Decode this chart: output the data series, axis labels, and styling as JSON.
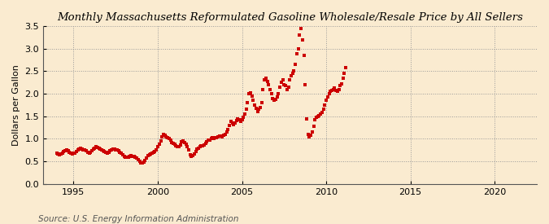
{
  "title": "Monthly Massachusetts Reformulated Gasoline Wholesale/Resale Price by All Sellers",
  "ylabel": "Dollars per Gallon",
  "source": "Source: U.S. Energy Information Administration",
  "background_color": "#faebd0",
  "marker_color": "#cc0000",
  "xlim": [
    1993.2,
    2022.5
  ],
  "ylim": [
    0.0,
    3.5
  ],
  "xticks": [
    1995,
    2000,
    2005,
    2010,
    2015,
    2020
  ],
  "yticks": [
    0.0,
    0.5,
    1.0,
    1.5,
    2.0,
    2.5,
    3.0,
    3.5
  ],
  "data": [
    [
      1994.0,
      0.68
    ],
    [
      1994.08,
      0.67
    ],
    [
      1994.17,
      0.65
    ],
    [
      1994.25,
      0.66
    ],
    [
      1994.33,
      0.69
    ],
    [
      1994.42,
      0.72
    ],
    [
      1994.5,
      0.74
    ],
    [
      1994.58,
      0.75
    ],
    [
      1994.67,
      0.73
    ],
    [
      1994.75,
      0.7
    ],
    [
      1994.83,
      0.68
    ],
    [
      1994.92,
      0.67
    ],
    [
      1995.0,
      0.68
    ],
    [
      1995.08,
      0.69
    ],
    [
      1995.17,
      0.72
    ],
    [
      1995.25,
      0.75
    ],
    [
      1995.33,
      0.78
    ],
    [
      1995.42,
      0.8
    ],
    [
      1995.5,
      0.78
    ],
    [
      1995.58,
      0.76
    ],
    [
      1995.67,
      0.75
    ],
    [
      1995.75,
      0.73
    ],
    [
      1995.83,
      0.7
    ],
    [
      1995.92,
      0.69
    ],
    [
      1996.0,
      0.71
    ],
    [
      1996.08,
      0.73
    ],
    [
      1996.17,
      0.77
    ],
    [
      1996.25,
      0.8
    ],
    [
      1996.33,
      0.82
    ],
    [
      1996.42,
      0.81
    ],
    [
      1996.5,
      0.79
    ],
    [
      1996.58,
      0.78
    ],
    [
      1996.67,
      0.76
    ],
    [
      1996.75,
      0.74
    ],
    [
      1996.83,
      0.72
    ],
    [
      1996.92,
      0.7
    ],
    [
      1997.0,
      0.69
    ],
    [
      1997.08,
      0.7
    ],
    [
      1997.17,
      0.73
    ],
    [
      1997.25,
      0.75
    ],
    [
      1997.33,
      0.77
    ],
    [
      1997.42,
      0.78
    ],
    [
      1997.5,
      0.76
    ],
    [
      1997.58,
      0.75
    ],
    [
      1997.67,
      0.73
    ],
    [
      1997.75,
      0.71
    ],
    [
      1997.83,
      0.68
    ],
    [
      1997.92,
      0.65
    ],
    [
      1998.0,
      0.62
    ],
    [
      1998.08,
      0.6
    ],
    [
      1998.17,
      0.59
    ],
    [
      1998.25,
      0.6
    ],
    [
      1998.33,
      0.62
    ],
    [
      1998.42,
      0.63
    ],
    [
      1998.5,
      0.62
    ],
    [
      1998.58,
      0.61
    ],
    [
      1998.67,
      0.59
    ],
    [
      1998.75,
      0.57
    ],
    [
      1998.83,
      0.54
    ],
    [
      1998.92,
      0.5
    ],
    [
      1999.0,
      0.47
    ],
    [
      1999.08,
      0.46
    ],
    [
      1999.17,
      0.48
    ],
    [
      1999.25,
      0.52
    ],
    [
      1999.33,
      0.58
    ],
    [
      1999.42,
      0.63
    ],
    [
      1999.5,
      0.65
    ],
    [
      1999.58,
      0.67
    ],
    [
      1999.67,
      0.68
    ],
    [
      1999.75,
      0.7
    ],
    [
      1999.83,
      0.72
    ],
    [
      1999.92,
      0.75
    ],
    [
      2000.0,
      0.82
    ],
    [
      2000.08,
      0.88
    ],
    [
      2000.17,
      0.95
    ],
    [
      2000.25,
      1.05
    ],
    [
      2000.33,
      1.1
    ],
    [
      2000.42,
      1.08
    ],
    [
      2000.5,
      1.05
    ],
    [
      2000.58,
      1.02
    ],
    [
      2000.67,
      1.0
    ],
    [
      2000.75,
      0.97
    ],
    [
      2000.83,
      0.92
    ],
    [
      2000.92,
      0.9
    ],
    [
      2001.0,
      0.88
    ],
    [
      2001.08,
      0.85
    ],
    [
      2001.17,
      0.82
    ],
    [
      2001.25,
      0.83
    ],
    [
      2001.33,
      0.87
    ],
    [
      2001.42,
      0.93
    ],
    [
      2001.5,
      0.95
    ],
    [
      2001.58,
      0.92
    ],
    [
      2001.67,
      0.88
    ],
    [
      2001.75,
      0.82
    ],
    [
      2001.83,
      0.75
    ],
    [
      2001.92,
      0.65
    ],
    [
      2002.0,
      0.62
    ],
    [
      2002.08,
      0.63
    ],
    [
      2002.17,
      0.67
    ],
    [
      2002.25,
      0.72
    ],
    [
      2002.33,
      0.78
    ],
    [
      2002.42,
      0.8
    ],
    [
      2002.5,
      0.82
    ],
    [
      2002.58,
      0.84
    ],
    [
      2002.67,
      0.85
    ],
    [
      2002.75,
      0.87
    ],
    [
      2002.83,
      0.9
    ],
    [
      2002.92,
      0.93
    ],
    [
      2003.0,
      0.97
    ],
    [
      2003.08,
      0.98
    ],
    [
      2003.17,
      1.0
    ],
    [
      2003.25,
      1.02
    ],
    [
      2003.33,
      1.0
    ],
    [
      2003.42,
      1.02
    ],
    [
      2003.5,
      1.03
    ],
    [
      2003.58,
      1.05
    ],
    [
      2003.67,
      1.07
    ],
    [
      2003.75,
      1.06
    ],
    [
      2003.83,
      1.05
    ],
    [
      2003.92,
      1.08
    ],
    [
      2004.0,
      1.1
    ],
    [
      2004.08,
      1.15
    ],
    [
      2004.17,
      1.2
    ],
    [
      2004.25,
      1.3
    ],
    [
      2004.33,
      1.38
    ],
    [
      2004.42,
      1.35
    ],
    [
      2004.5,
      1.32
    ],
    [
      2004.58,
      1.35
    ],
    [
      2004.67,
      1.4
    ],
    [
      2004.75,
      1.45
    ],
    [
      2004.83,
      1.42
    ],
    [
      2004.92,
      1.38
    ],
    [
      2005.0,
      1.42
    ],
    [
      2005.08,
      1.48
    ],
    [
      2005.17,
      1.55
    ],
    [
      2005.25,
      1.65
    ],
    [
      2005.33,
      1.8
    ],
    [
      2005.42,
      2.0
    ],
    [
      2005.5,
      2.02
    ],
    [
      2005.58,
      1.95
    ],
    [
      2005.67,
      1.85
    ],
    [
      2005.75,
      1.75
    ],
    [
      2005.83,
      1.68
    ],
    [
      2005.92,
      1.6
    ],
    [
      2006.0,
      1.65
    ],
    [
      2006.08,
      1.7
    ],
    [
      2006.17,
      1.8
    ],
    [
      2006.25,
      2.1
    ],
    [
      2006.33,
      2.3
    ],
    [
      2006.42,
      2.35
    ],
    [
      2006.5,
      2.28
    ],
    [
      2006.58,
      2.2
    ],
    [
      2006.67,
      2.1
    ],
    [
      2006.75,
      2.0
    ],
    [
      2006.83,
      1.9
    ],
    [
      2006.92,
      1.85
    ],
    [
      2007.0,
      1.88
    ],
    [
      2007.08,
      1.92
    ],
    [
      2007.17,
      2.0
    ],
    [
      2007.25,
      2.15
    ],
    [
      2007.33,
      2.25
    ],
    [
      2007.42,
      2.3
    ],
    [
      2007.5,
      2.2
    ],
    [
      2007.58,
      2.18
    ],
    [
      2007.67,
      2.1
    ],
    [
      2007.75,
      2.15
    ],
    [
      2007.83,
      2.3
    ],
    [
      2007.92,
      2.4
    ],
    [
      2008.0,
      2.45
    ],
    [
      2008.08,
      2.5
    ],
    [
      2008.17,
      2.65
    ],
    [
      2008.25,
      2.88
    ],
    [
      2008.33,
      3.0
    ],
    [
      2008.42,
      3.3
    ],
    [
      2008.5,
      3.45
    ],
    [
      2008.58,
      3.2
    ],
    [
      2008.67,
      2.85
    ],
    [
      2008.75,
      2.2
    ],
    [
      2008.83,
      1.45
    ],
    [
      2008.92,
      1.1
    ],
    [
      2009.0,
      1.05
    ],
    [
      2009.08,
      1.08
    ],
    [
      2009.17,
      1.15
    ],
    [
      2009.25,
      1.28
    ],
    [
      2009.33,
      1.42
    ],
    [
      2009.42,
      1.48
    ],
    [
      2009.5,
      1.5
    ],
    [
      2009.58,
      1.52
    ],
    [
      2009.67,
      1.55
    ],
    [
      2009.75,
      1.58
    ],
    [
      2009.83,
      1.65
    ],
    [
      2009.92,
      1.75
    ],
    [
      2010.0,
      1.85
    ],
    [
      2010.08,
      1.92
    ],
    [
      2010.17,
      2.0
    ],
    [
      2010.25,
      2.05
    ],
    [
      2010.33,
      2.08
    ],
    [
      2010.42,
      2.1
    ],
    [
      2010.5,
      2.12
    ],
    [
      2010.58,
      2.08
    ],
    [
      2010.67,
      2.05
    ],
    [
      2010.75,
      2.1
    ],
    [
      2010.83,
      2.18
    ],
    [
      2010.92,
      2.22
    ],
    [
      2011.0,
      2.35
    ],
    [
      2011.08,
      2.45
    ],
    [
      2011.17,
      2.58
    ]
  ]
}
